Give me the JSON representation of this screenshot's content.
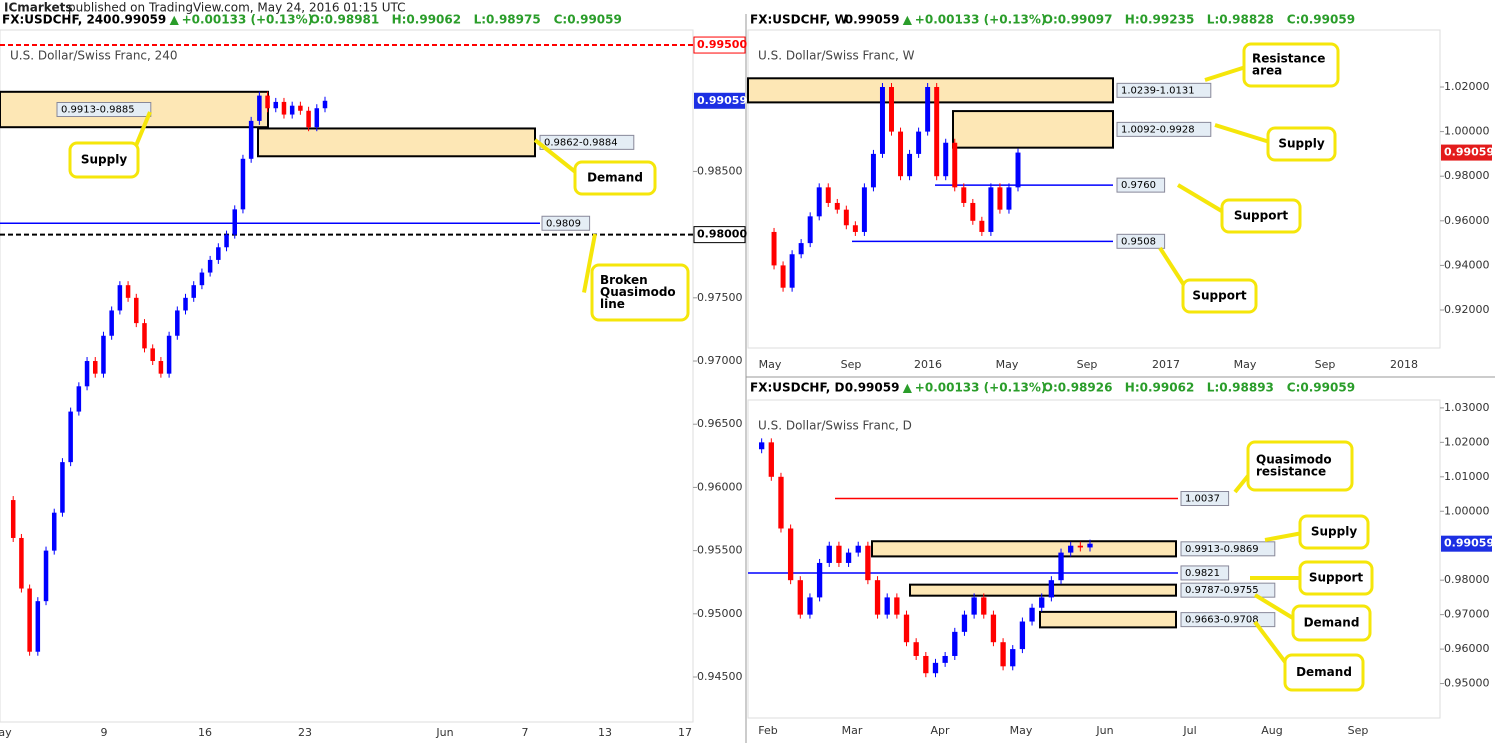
{
  "header": {
    "brand": "ICmarkets",
    "text": "published on TradingView.com, May 24, 2016 01:15 UTC"
  },
  "chart_data": [
    {
      "type": "candlestick",
      "info": {
        "symbol": "FX:USDCHF, 240",
        "last": "0.99059",
        "arrow": "▲",
        "change": "+0.00133 (+0.13%)",
        "o": "O:0.98981",
        "h": "H:0.99062",
        "l": "L:0.98975",
        "c": "C:0.99059"
      },
      "title": "U.S. Dollar/Swiss Franc, 240",
      "ylim": [
        0.94144,
        0.99619
      ],
      "yticks": [
        {
          "value": 0.945,
          "label": "0.94500"
        },
        {
          "value": 0.95,
          "label": "0.95000"
        },
        {
          "value": 0.955,
          "label": "0.95500"
        },
        {
          "value": 0.96,
          "label": "0.96000"
        },
        {
          "value": 0.965,
          "label": "0.96500"
        },
        {
          "value": 0.97,
          "label": "0.97000"
        },
        {
          "value": 0.975,
          "label": "0.97500"
        },
        {
          "value": 0.985,
          "label": "0.98500"
        }
      ],
      "x_labels": [
        "ay",
        "9",
        "16",
        "23",
        "Jun",
        "7",
        "13",
        "17"
      ],
      "closes": [
        0.959,
        0.956,
        0.952,
        0.947,
        0.951,
        0.955,
        0.958,
        0.962,
        0.966,
        0.968,
        0.97,
        0.969,
        0.972,
        0.974,
        0.976,
        0.975,
        0.973,
        0.971,
        0.97,
        0.969,
        0.972,
        0.974,
        0.975,
        0.976,
        0.977,
        0.978,
        0.979,
        0.98,
        0.982,
        0.986,
        0.989,
        0.991,
        0.99,
        0.9905,
        0.9895,
        0.9902,
        0.9898,
        0.9885,
        0.99,
        0.99059
      ],
      "last_price": 0.99059,
      "price_levels": [
        {
          "value": 0.995,
          "label": "0.99500",
          "color": "#ff0000"
        },
        {
          "value": 0.98,
          "label": "0.98000",
          "color": "#000000"
        }
      ],
      "zones": [
        {
          "label": "0.9913-0.9885",
          "top": 0.9913,
          "bottom": 0.9885
        },
        {
          "label": "0.9862-0.9884",
          "top": 0.9884,
          "bottom": 0.9862
        }
      ],
      "lines": [
        {
          "label": "0.9809",
          "value": 0.9809,
          "color": "#0000ff"
        }
      ],
      "callouts": [
        {
          "lines": [
            "Supply"
          ]
        },
        {
          "lines": [
            "Demand"
          ]
        },
        {
          "lines": [
            "Broken",
            "Quasimodo",
            "line"
          ]
        }
      ]
    },
    {
      "type": "candlestick",
      "info": {
        "symbol": "FX:USDCHF, W",
        "last": "0.99059",
        "arrow": "▲",
        "change": "+0.00133 (+0.13%)",
        "o": "O:0.99097",
        "h": "H:0.99235",
        "l": "L:0.98828",
        "c": "C:0.99059"
      },
      "title": "U.S. Dollar/Swiss Franc, W",
      "ylim": [
        0.90296,
        1.04556
      ],
      "yticks": [
        {
          "value": 0.92,
          "label": "0.92000"
        },
        {
          "value": 0.94,
          "label": "0.94000"
        },
        {
          "value": 0.96,
          "label": "0.96000"
        },
        {
          "value": 0.98,
          "label": "0.98000"
        },
        {
          "value": 1.0,
          "label": "1.00000"
        },
        {
          "value": 1.02,
          "label": "1.02000"
        }
      ],
      "x_labels": [
        "May",
        "Sep",
        "2016",
        "May",
        "Sep",
        "2017",
        "May",
        "Sep",
        "2018"
      ],
      "closes": [
        0.955,
        0.94,
        0.93,
        0.945,
        0.95,
        0.962,
        0.975,
        0.968,
        0.965,
        0.958,
        0.955,
        0.975,
        0.99,
        1.02,
        1.0,
        0.98,
        0.99,
        1.0,
        1.02,
        0.98,
        0.995,
        0.975,
        0.968,
        0.96,
        0.955,
        0.975,
        0.965,
        0.975,
        0.99059
      ],
      "last_price": 0.99059,
      "price_levels": [],
      "zones": [
        {
          "label": "1.0239-1.0131",
          "top": 1.0239,
          "bottom": 1.0131
        },
        {
          "label": "1.0092-0.9928",
          "top": 1.0092,
          "bottom": 0.9928
        }
      ],
      "lines": [
        {
          "label": "0.9760",
          "value": 0.976,
          "color": "#0000ff"
        },
        {
          "label": "0.9508",
          "value": 0.9508,
          "color": "#0000ff"
        }
      ],
      "callouts": [
        {
          "lines": [
            "Resistance",
            "area"
          ]
        },
        {
          "lines": [
            "Supply"
          ]
        },
        {
          "lines": [
            "Support"
          ]
        },
        {
          "lines": [
            "Support"
          ]
        }
      ]
    },
    {
      "type": "candlestick",
      "info": {
        "symbol": "FX:USDCHF, D",
        "last": "0.99059",
        "arrow": "▲",
        "change": "+0.00133 (+0.13%)",
        "o": "O:0.98926",
        "h": "H:0.99062",
        "l": "L:0.98893",
        "c": "C:0.99059"
      },
      "title": "U.S. Dollar/Swiss Franc, D",
      "ylim": [
        0.94,
        1.03229
      ],
      "yticks": [
        {
          "value": 0.95,
          "label": "0.95000"
        },
        {
          "value": 0.96,
          "label": "0.96000"
        },
        {
          "value": 0.97,
          "label": "0.97000"
        },
        {
          "value": 0.98,
          "label": "0.98000"
        },
        {
          "value": 1.0,
          "label": "1.00000"
        },
        {
          "value": 1.01,
          "label": "1.01000"
        },
        {
          "value": 1.02,
          "label": "1.02000"
        },
        {
          "value": 1.03,
          "label": "1.03000"
        }
      ],
      "x_labels": [
        "Feb",
        "Mar",
        "Apr",
        "May",
        "Jun",
        "Jul",
        "Aug",
        "Sep"
      ],
      "closes": [
        1.018,
        1.02,
        1.01,
        0.995,
        0.98,
        0.97,
        0.975,
        0.985,
        0.99,
        0.985,
        0.988,
        0.99,
        0.98,
        0.97,
        0.975,
        0.97,
        0.962,
        0.958,
        0.953,
        0.956,
        0.958,
        0.965,
        0.97,
        0.975,
        0.97,
        0.962,
        0.955,
        0.96,
        0.968,
        0.972,
        0.975,
        0.98,
        0.988,
        0.99,
        0.9895,
        0.99059
      ],
      "last_price": 0.99059,
      "price_levels": [],
      "zones": [
        {
          "label": "0.9913-0.9869",
          "top": 0.9913,
          "bottom": 0.9869
        },
        {
          "label": "0.9787-0.9755",
          "top": 0.9787,
          "bottom": 0.9755
        },
        {
          "label": "0.9663-0.9708",
          "top": 0.9708,
          "bottom": 0.9663
        }
      ],
      "lines": [
        {
          "label": "1.0037",
          "value": 1.0037,
          "color": "#ff0000"
        },
        {
          "label": "0.9821",
          "value": 0.9821,
          "color": "#0000ff"
        }
      ],
      "callouts": [
        {
          "lines": [
            "Quasimodo",
            "resistance"
          ]
        },
        {
          "lines": [
            "Supply"
          ]
        },
        {
          "lines": [
            "Support"
          ]
        },
        {
          "lines": [
            "Demand"
          ]
        },
        {
          "lines": [
            "Demand"
          ]
        }
      ]
    }
  ]
}
